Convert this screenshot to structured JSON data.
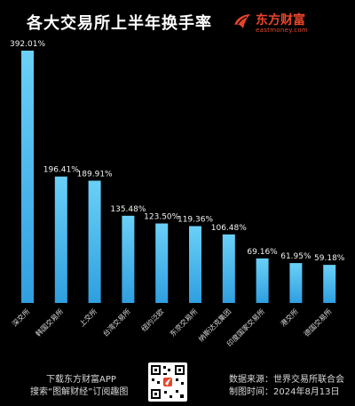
{
  "header": {
    "title": "各大交易所上半年换手率",
    "brand_name": "东方财富",
    "brand_domain": "eastmoney.com",
    "brand_color": "#e8452a"
  },
  "chart_data": {
    "type": "bar",
    "title": "各大交易所上半年换手率",
    "categories": [
      "深交所",
      "韩国交易所",
      "上交所",
      "台湾交易所",
      "纽约泛欧",
      "东京交易所",
      "纳斯达克集团",
      "印度国家交易所",
      "港交所",
      "德国交易所"
    ],
    "values": [
      392.01,
      196.41,
      189.91,
      135.48,
      123.5,
      119.36,
      106.48,
      69.16,
      61.95,
      59.18
    ],
    "value_labels": [
      "392.01%",
      "196.41%",
      "189.91%",
      "135.48%",
      "123.50%",
      "119.36%",
      "106.48%",
      "69.16%",
      "61.95%",
      "59.18%"
    ],
    "ylim": [
      0,
      400
    ],
    "xlabel": "",
    "ylabel": "",
    "grid": false,
    "bar_color_top": "#6ad0f7",
    "bar_color_bottom": "#2f9fe0"
  },
  "footer": {
    "download_text": "下载东方财富APP",
    "search_text": "搜索“图解财经”订阅趣图",
    "source_text": "数据来源：世界交易所联合会",
    "date_text": "制图时间：2024年8月13日"
  }
}
